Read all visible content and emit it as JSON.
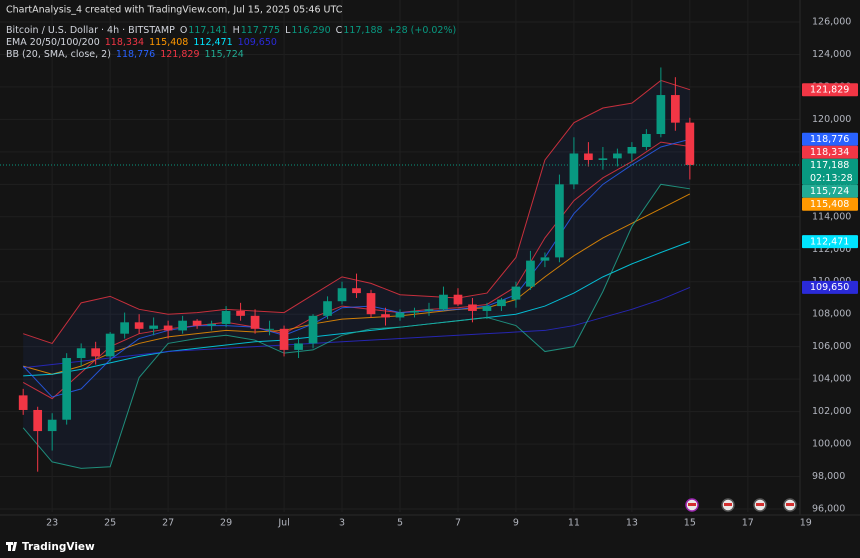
{
  "watermark": "ChartAnalysis_4 created with TradingView.com, Jul 15, 2025 05:46 UTC",
  "footer": "TradingView",
  "chart_data": {
    "type": "candlestick",
    "title": "Bitcoin / U.S. Dollar · 4h · BITSTAMP",
    "ohlc": [
      {
        "label": "O",
        "value": "117,141"
      },
      {
        "label": "H",
        "value": "117,775"
      },
      {
        "label": "L",
        "value": "116,290"
      },
      {
        "label": "C",
        "value": "117,188"
      }
    ],
    "change": "+28 (+0.02%)",
    "up_color": "#089981",
    "down_color": "#f23645",
    "candles": {
      "open": [
        103000,
        102100,
        100800,
        101500,
        105300,
        105900,
        105400,
        106800,
        107500,
        107100,
        107300,
        107000,
        107600,
        107300,
        107400,
        108200,
        107900,
        107100,
        107100,
        105800,
        106200,
        107900,
        108800,
        109600,
        109300,
        108000,
        107800,
        108100,
        108200,
        108300,
        109200,
        108600,
        108200,
        108500,
        108900,
        109700,
        111300,
        111500,
        116000,
        117900,
        117500,
        117600,
        117900,
        118300,
        119100,
        121500,
        119800
      ],
      "high": [
        103400,
        102300,
        101900,
        105600,
        106200,
        106300,
        106900,
        108100,
        108000,
        107800,
        107600,
        107900,
        107700,
        107600,
        108500,
        108700,
        108300,
        107600,
        107300,
        106600,
        108000,
        109100,
        110000,
        110500,
        109500,
        108400,
        108300,
        108400,
        108700,
        109700,
        109600,
        109000,
        108700,
        109000,
        110000,
        111900,
        111800,
        116600,
        118900,
        118600,
        118300,
        118200,
        118600,
        119400,
        123200,
        122600,
        120100
      ],
      "low": [
        101800,
        98300,
        99600,
        101200,
        104800,
        104900,
        105100,
        106500,
        106800,
        106700,
        106500,
        106800,
        107100,
        107000,
        107200,
        107600,
        106800,
        106700,
        105400,
        105300,
        105900,
        107700,
        108600,
        109000,
        107800,
        107300,
        107600,
        107800,
        107900,
        108200,
        108500,
        107500,
        107700,
        108200,
        108400,
        109500,
        110900,
        111200,
        115700,
        117100,
        116900,
        117100,
        117400,
        118100,
        118900,
        119300,
        116300
      ],
      "close": [
        102100,
        100800,
        101500,
        105300,
        105900,
        105400,
        106800,
        107500,
        107100,
        107300,
        107000,
        107600,
        107300,
        107400,
        108200,
        107900,
        107100,
        107100,
        105800,
        106200,
        107900,
        108800,
        109600,
        109300,
        108000,
        107800,
        108100,
        108200,
        108300,
        109200,
        108600,
        108200,
        108500,
        108900,
        109700,
        111300,
        111500,
        116000,
        117900,
        117500,
        117600,
        117900,
        118300,
        119100,
        121500,
        119800,
        117188
      ]
    },
    "series_x": [
      0,
      2,
      4,
      6,
      8,
      10,
      12,
      14,
      16,
      18,
      20,
      22,
      24,
      26,
      28,
      30,
      32,
      34,
      36,
      38,
      40,
      42,
      44,
      46
    ],
    "indicators": [
      {
        "title": "EMA 20/50/100/200",
        "series": [
          {
            "color": "#f23645",
            "values": [
              103800,
              102800,
              104400,
              106000,
              106800,
              107100,
              107300,
              107500,
              107200,
              106800,
              107800,
              108500,
              108300,
              108100,
              108300,
              108400,
              108600,
              109700,
              112700,
              115000,
              116400,
              117400,
              118600,
              118334
            ],
            "tag": {
              "value": 118334,
              "label": "118,334"
            }
          },
          {
            "color": "#ff9800",
            "values": [
              104800,
              104300,
              104800,
              105600,
              106200,
              106600,
              106800,
              107000,
              106900,
              107000,
              107400,
              107700,
              107800,
              107900,
              108100,
              108300,
              108400,
              108900,
              110300,
              111600,
              112700,
              113600,
              114500,
              115408
            ],
            "tag": {
              "value": 115408,
              "label": "115,408"
            }
          },
          {
            "color": "#00e5ff",
            "values": [
              104200,
              104300,
              104600,
              105000,
              105400,
              105700,
              105900,
              106100,
              106300,
              106400,
              106600,
              106800,
              107000,
              107200,
              107400,
              107600,
              107800,
              108000,
              108500,
              109300,
              110300,
              111100,
              111800,
              112471
            ],
            "tag": {
              "value": 112471,
              "label": "112,471"
            }
          },
          {
            "color": "#2a2ad8",
            "values": [
              104700,
              104900,
              105100,
              105300,
              105500,
              105700,
              105800,
              105900,
              106000,
              106100,
              106200,
              106300,
              106400,
              106500,
              106600,
              106700,
              106800,
              106900,
              107000,
              107300,
              107800,
              108300,
              108900,
              109650
            ],
            "tag": {
              "value": 109650,
              "label": "109,650"
            }
          }
        ]
      },
      {
        "title": "BB (20, SMA, close, 2)",
        "series": [
          {
            "color": "#2962ff",
            "values": [
              104800,
              102900,
              103400,
              105200,
              106500,
              107000,
              107300,
              107300,
              107200,
              106700,
              107400,
              108400,
              108500,
              108100,
              108200,
              108300,
              108500,
              109200,
              111500,
              114200,
              116000,
              117200,
              118300,
              118776
            ],
            "tag": {
              "value": 118776,
              "label": "118,776"
            }
          },
          {
            "color": "#f23645",
            "values": [
              106800,
              106200,
              108700,
              109100,
              108300,
              108000,
              108100,
              108300,
              108200,
              108100,
              109200,
              110300,
              109900,
              109200,
              109100,
              109000,
              109300,
              111500,
              117500,
              119800,
              120700,
              121000,
              122400,
              121829
            ],
            "tag": {
              "value": 121829,
              "label": "121,829"
            }
          },
          {
            "color": "#22ab94",
            "values": [
              101000,
              98900,
              98500,
              98600,
              104100,
              106200,
              106500,
              106700,
              106400,
              105600,
              105800,
              106700,
              107100,
              107200,
              107400,
              107600,
              107800,
              107300,
              105700,
              106000,
              109400,
              113400,
              116000,
              115724
            ],
            "tag": {
              "value": 115724,
              "label": "115,724"
            }
          }
        ]
      }
    ],
    "last_price": {
      "value": 117188,
      "label": "117,188",
      "color": "#089981"
    },
    "countdown": "02:13:28",
    "xlim": [
      -1.6,
      53.6
    ],
    "ylim": [
      96000,
      126000
    ],
    "xticks": [
      {
        "value": 2,
        "label": "23"
      },
      {
        "value": 6,
        "label": "25"
      },
      {
        "value": 10,
        "label": "27"
      },
      {
        "value": 14,
        "label": "29"
      },
      {
        "value": 18,
        "label": "Jul"
      },
      {
        "value": 22,
        "label": "3"
      },
      {
        "value": 26,
        "label": "5"
      },
      {
        "value": 30,
        "label": "7"
      },
      {
        "value": 34,
        "label": "9"
      },
      {
        "value": 38,
        "label": "11"
      },
      {
        "value": 42,
        "label": "13"
      },
      {
        "value": 46,
        "label": "15"
      },
      {
        "value": 50,
        "label": "17"
      },
      {
        "value": 54,
        "label": "19"
      }
    ],
    "yticks": [
      {
        "value": 96000,
        "label": "96,000"
      },
      {
        "value": 98000,
        "label": "98,000"
      },
      {
        "value": 100000,
        "label": "100,000"
      },
      {
        "value": 102000,
        "label": "102,000"
      },
      {
        "value": 104000,
        "label": "104,000"
      },
      {
        "value": 106000,
        "label": "106,000"
      },
      {
        "value": 108000,
        "label": "108,000"
      },
      {
        "value": 110000,
        "label": "110,000"
      },
      {
        "value": 112000,
        "label": "112,000"
      },
      {
        "value": 114000,
        "label": "114,000"
      },
      {
        "value": 116000,
        "label": "116,000"
      },
      {
        "value": 118000,
        "label": "118,000"
      },
      {
        "value": 120000,
        "label": "120,000"
      },
      {
        "value": 122000,
        "label": "122,000"
      },
      {
        "value": 124000,
        "label": "124,000"
      },
      {
        "value": 126000,
        "label": "126,000"
      }
    ],
    "grid": true
  }
}
